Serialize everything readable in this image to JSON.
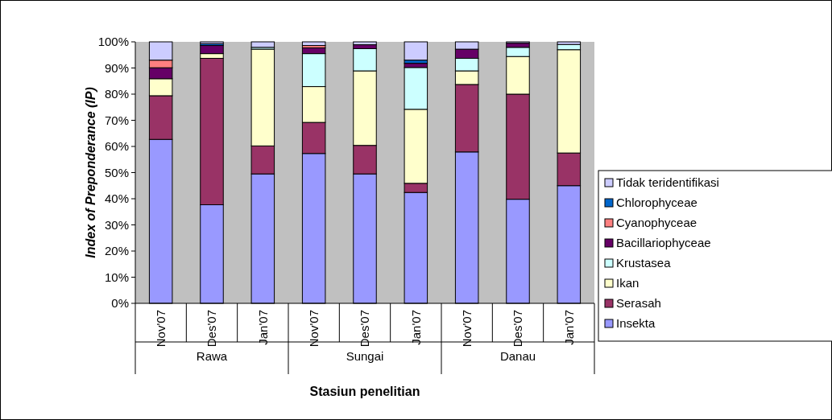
{
  "chart_data": {
    "type": "bar",
    "stacked": true,
    "xlabel": "Stasiun penelitian",
    "ylabel": "Index of Preponderance (IP)",
    "categories": [
      "Nov'07",
      "Des'07",
      "Jan'07",
      "Nov'07",
      "Des'07",
      "Jan'07",
      "Nov'07",
      "Des'07",
      "Jan'07"
    ],
    "annotations": [
      "Rawa",
      "Sungai",
      "Danau"
    ],
    "ylim": [
      0,
      100
    ],
    "yticks": [
      {
        "value": 0,
        "label": "0%"
      },
      {
        "value": 10,
        "label": "10%"
      },
      {
        "value": 20,
        "label": "20%"
      },
      {
        "value": 30,
        "label": "30%"
      },
      {
        "value": 40,
        "label": "40%"
      },
      {
        "value": 50,
        "label": "50%"
      },
      {
        "value": 60,
        "label": "60%"
      },
      {
        "value": 70,
        "label": "70%"
      },
      {
        "value": 80,
        "label": "80%"
      },
      {
        "value": 90,
        "label": "90%"
      },
      {
        "value": 100,
        "label": "100%"
      }
    ],
    "legend": "right",
    "grid": false,
    "series": [
      {
        "name": "Insekta",
        "color": "#9999ff",
        "values": [
          62.7,
          37.7,
          49.5,
          57.3,
          49.5,
          42.4,
          57.9,
          39.8,
          45
        ]
      },
      {
        "name": "Serasah",
        "color": "#993366",
        "values": [
          16.7,
          56,
          10.7,
          11.9,
          10.9,
          3.5,
          25.8,
          40.2,
          12.5
        ]
      },
      {
        "name": "Ikan",
        "color": "#ffffcc",
        "values": [
          6.5,
          1.8,
          37,
          13.7,
          28.5,
          28.3,
          5.2,
          14.4,
          39.5
        ]
      },
      {
        "name": "Krustasea",
        "color": "#ccffff",
        "values": [
          0,
          0,
          0.7,
          12.6,
          8.5,
          16,
          4.8,
          3.5,
          2
        ]
      },
      {
        "name": "Bacillariophyceae",
        "color": "#660066",
        "values": [
          4.2,
          3.1,
          0,
          2.2,
          1.5,
          1.6,
          3.5,
          1.6,
          0
        ]
      },
      {
        "name": "Cyanophyceae",
        "color": "#ff8080",
        "values": [
          2.9,
          0,
          0,
          0.9,
          0,
          0,
          0,
          0,
          0
        ]
      },
      {
        "name": "Chlorophyceae",
        "color": "#0066cc",
        "values": [
          0,
          0.7,
          0,
          0,
          0,
          1.2,
          0,
          0,
          0
        ]
      },
      {
        "name": "Tidak teridentifikasi",
        "color": "#ccccff",
        "values": [
          7,
          0.7,
          2.1,
          1.4,
          1.1,
          7,
          2.8,
          0.5,
          1
        ]
      }
    ]
  }
}
